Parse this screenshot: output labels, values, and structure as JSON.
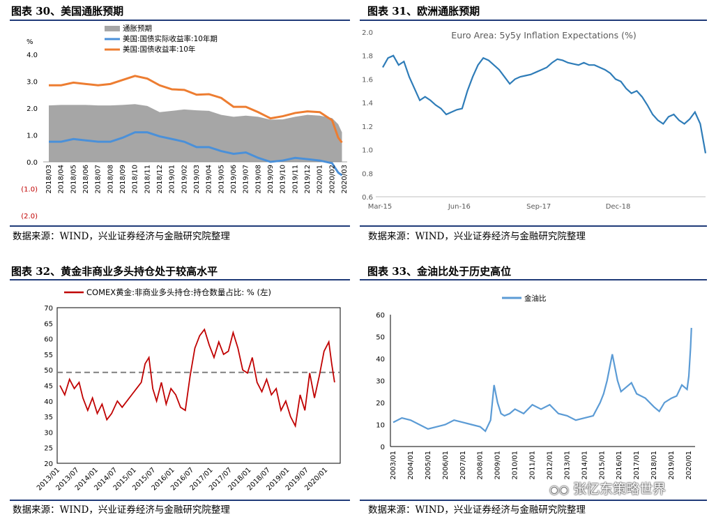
{
  "panels": {
    "p30": {
      "title": "图表 30、美国通胀预期",
      "source": "数据来源：WIND，兴业证券经济与金融研究院整理"
    },
    "p31": {
      "title": "图表 31、欧洲通胀预期",
      "source": "数据来源：WIND，兴业证券经济与金融研究院整理"
    },
    "p32": {
      "title": "图表 32、黄金非商业多头持仓处于较高水平",
      "source": "数据来源：WIND，兴业证券经济与金融研究院整理"
    },
    "p33": {
      "title": "图表 33、金油比处于历史高位",
      "source": "数据来源：WIND，兴业证券经济与金融研究院整理"
    }
  },
  "watermark": "张忆东策略世界",
  "chart_data": [
    {
      "id": "us",
      "type": "line",
      "title": "",
      "yunit": "%",
      "ylim": [
        -2.0,
        4.0
      ],
      "yticks": [
        "(2.0)",
        "(1.0)",
        "0.0",
        "1.0",
        "2.0",
        "3.0",
        "4.0"
      ],
      "yticks_values": [
        -2,
        -1,
        0,
        1,
        2,
        3,
        4
      ],
      "xticks": [
        "2018/03",
        "2018/04",
        "2018/05",
        "2018/06",
        "2018/07",
        "2018/08",
        "2018/09",
        "2018/10",
        "2018/11",
        "2018/12",
        "2019/01",
        "2019/02",
        "2019/03",
        "2019/04",
        "2019/05",
        "2019/06",
        "2019/07",
        "2019/08",
        "2019/09",
        "2019/10",
        "2019/11",
        "2019/12",
        "2020/01",
        "2020/02",
        "2020/03"
      ],
      "legend_position": "top-left",
      "series": [
        {
          "name": "通胀预期",
          "kind": "area",
          "color": "#a6a6a6",
          "x": [
            0,
            1,
            2,
            3,
            4,
            5,
            6,
            7,
            8,
            9,
            10,
            11,
            12,
            13,
            14,
            15,
            16,
            17,
            18,
            19,
            20,
            21,
            22,
            23,
            23.5,
            23.8
          ],
          "values": [
            2.1,
            2.12,
            2.12,
            2.12,
            2.1,
            2.1,
            2.12,
            2.15,
            2.08,
            1.85,
            1.9,
            1.95,
            1.92,
            1.9,
            1.75,
            1.68,
            1.72,
            1.68,
            1.57,
            1.58,
            1.68,
            1.75,
            1.72,
            1.63,
            1.4,
            1.1
          ]
        },
        {
          "name": "美国:国债实际收益率:10年期",
          "kind": "line",
          "color": "#4a90d9",
          "x": [
            0,
            1,
            2,
            3,
            4,
            5,
            6,
            7,
            8,
            9,
            10,
            11,
            12,
            13,
            14,
            15,
            16,
            17,
            18,
            19,
            20,
            21,
            22,
            23,
            23.5,
            23.8
          ],
          "values": [
            0.75,
            0.75,
            0.85,
            0.8,
            0.75,
            0.75,
            0.9,
            1.1,
            1.1,
            0.95,
            0.85,
            0.75,
            0.55,
            0.55,
            0.4,
            0.3,
            0.35,
            0.15,
            0.0,
            0.05,
            0.15,
            0.1,
            0.05,
            -0.05,
            -0.4,
            -0.5
          ]
        },
        {
          "name": "美国:国债收益率:10年",
          "kind": "line",
          "color": "#ed7d31",
          "x": [
            0,
            1,
            2,
            3,
            4,
            5,
            6,
            7,
            8,
            9,
            10,
            11,
            12,
            13,
            14,
            15,
            16,
            17,
            18,
            19,
            20,
            21,
            22,
            23,
            23.5,
            23.8
          ],
          "values": [
            2.85,
            2.85,
            2.95,
            2.9,
            2.85,
            2.9,
            3.05,
            3.2,
            3.1,
            2.85,
            2.7,
            2.68,
            2.5,
            2.52,
            2.38,
            2.05,
            2.05,
            1.85,
            1.62,
            1.7,
            1.82,
            1.88,
            1.85,
            1.55,
            0.9,
            0.72
          ]
        }
      ]
    },
    {
      "id": "eu",
      "type": "line",
      "title": "Euro Area: 5y5y Inflation Expectations (%)",
      "ylim": [
        0.6,
        2.0
      ],
      "yticks": [
        "0.6",
        "0.8",
        "1.0",
        "1.2",
        "1.4",
        "1.6",
        "1.8",
        "2.0"
      ],
      "yticks_values": [
        0.6,
        0.8,
        1.0,
        1.2,
        1.4,
        1.6,
        1.8,
        2.0
      ],
      "xticks": [
        "Mar-15",
        "Jun-16",
        "Sep-17",
        "Dec-18"
      ],
      "xticks_values": [
        0,
        15,
        30,
        45
      ],
      "xlim": [
        0,
        61
      ],
      "series": [
        {
          "name": "Euro Area 5y5y",
          "color": "#2e7cb8",
          "x": [
            0,
            1,
            2,
            3,
            4,
            5,
            6,
            7,
            8,
            9,
            10,
            11,
            12,
            13,
            14,
            15,
            16,
            17,
            18,
            19,
            20,
            21,
            22,
            23,
            24,
            25,
            26,
            27,
            28,
            29,
            30,
            31,
            32,
            33,
            34,
            35,
            36,
            37,
            38,
            39,
            40,
            41,
            42,
            43,
            44,
            45,
            46,
            47,
            48,
            49,
            50,
            51,
            52,
            53,
            54,
            55,
            56,
            57,
            58,
            59,
            60,
            61
          ],
          "values": [
            1.7,
            1.78,
            1.8,
            1.72,
            1.75,
            1.62,
            1.52,
            1.42,
            1.45,
            1.42,
            1.38,
            1.35,
            1.3,
            1.32,
            1.34,
            1.35,
            1.5,
            1.62,
            1.72,
            1.78,
            1.76,
            1.72,
            1.68,
            1.62,
            1.56,
            1.6,
            1.62,
            1.63,
            1.64,
            1.66,
            1.68,
            1.7,
            1.74,
            1.77,
            1.76,
            1.74,
            1.73,
            1.72,
            1.74,
            1.72,
            1.72,
            1.7,
            1.68,
            1.65,
            1.6,
            1.58,
            1.52,
            1.48,
            1.5,
            1.45,
            1.38,
            1.3,
            1.25,
            1.22,
            1.28,
            1.3,
            1.25,
            1.22,
            1.26,
            1.32,
            1.22,
            0.97
          ]
        }
      ]
    },
    {
      "id": "gold",
      "type": "line",
      "title": "",
      "ylim": [
        20,
        70
      ],
      "yticks": [
        "20",
        "25",
        "30",
        "35",
        "40",
        "45",
        "50",
        "55",
        "60",
        "65",
        "70"
      ],
      "yticks_values": [
        20,
        25,
        30,
        35,
        40,
        45,
        50,
        55,
        60,
        65,
        70
      ],
      "xticks": [
        "2013/01",
        "2013/07",
        "2014/01",
        "2014/07",
        "2015/01",
        "2015/07",
        "2016/01",
        "2016/07",
        "2017/01",
        "2017/07",
        "2018/01",
        "2018/07",
        "2019/01",
        "2019/07",
        "2020/01"
      ],
      "xlim": [
        0,
        14.5
      ],
      "mean_line": 49.2,
      "series": [
        {
          "name": "COMEX黄金:非商业多头持仓:持仓数量占比: % (左)",
          "color": "#c00000",
          "x": [
            0,
            0.25,
            0.5,
            0.75,
            1.0,
            1.2,
            1.45,
            1.7,
            1.95,
            2.2,
            2.45,
            2.7,
            3.0,
            3.25,
            3.5,
            3.75,
            4.0,
            4.25,
            4.45,
            4.65,
            4.85,
            5.05,
            5.3,
            5.55,
            5.8,
            6.05,
            6.3,
            6.55,
            6.8,
            7.05,
            7.3,
            7.55,
            7.8,
            8.05,
            8.3,
            8.55,
            8.8,
            9.05,
            9.3,
            9.55,
            9.8,
            10.05,
            10.3,
            10.55,
            10.8,
            11.05,
            11.3,
            11.55,
            11.8,
            12.05,
            12.3,
            12.55,
            12.8,
            13.05,
            13.3,
            13.55,
            13.8,
            14.05,
            14.2,
            14.35
          ],
          "values": [
            45,
            42,
            47,
            44,
            46,
            41,
            37,
            41,
            36,
            39,
            34,
            36,
            40,
            38,
            40,
            42,
            44,
            46,
            52,
            54,
            44,
            40,
            46,
            39,
            44,
            42,
            38,
            37,
            48,
            57,
            61,
            63,
            58,
            54,
            59,
            55,
            56,
            62,
            57,
            50,
            49,
            54,
            46,
            43,
            47,
            42,
            44,
            37,
            40,
            35,
            32,
            42,
            37,
            49,
            41,
            48,
            56,
            59,
            52,
            46
          ]
        }
      ]
    },
    {
      "id": "goldoil",
      "type": "line",
      "title": "",
      "ylim": [
        0,
        60
      ],
      "yticks": [
        "0",
        "10",
        "20",
        "30",
        "40",
        "50",
        "60"
      ],
      "yticks_values": [
        0,
        10,
        20,
        30,
        40,
        50,
        60
      ],
      "xticks": [
        "2003/01",
        "2004/01",
        "2005/01",
        "2006/01",
        "2007/01",
        "2008/01",
        "2009/01",
        "2010/01",
        "2011/01",
        "2012/01",
        "2013/01",
        "2014/01",
        "2015/01",
        "2016/01",
        "2017/01",
        "2018/01",
        "2019/01",
        "2020/01"
      ],
      "xlim": [
        0,
        17.2
      ],
      "legend_position": "top-left",
      "series": [
        {
          "name": "金油比",
          "color": "#5b9bd5",
          "x": [
            0,
            0.5,
            1,
            1.5,
            2,
            2.5,
            3,
            3.5,
            4,
            4.5,
            5,
            5.3,
            5.6,
            5.8,
            6,
            6.2,
            6.4,
            6.7,
            7,
            7.5,
            8,
            8.5,
            9,
            9.5,
            10,
            10.5,
            11,
            11.5,
            11.9,
            12.1,
            12.3,
            12.6,
            12.9,
            13.1,
            13.4,
            13.7,
            14,
            14.5,
            15,
            15.3,
            15.6,
            16,
            16.3,
            16.6,
            16.9,
            17.0,
            17.1,
            17.15
          ],
          "values": [
            11,
            13,
            12,
            10,
            8,
            9,
            10,
            12,
            11,
            10,
            9,
            7,
            12,
            28,
            20,
            15,
            14,
            15,
            17,
            15,
            19,
            17,
            19,
            15,
            14,
            12,
            13,
            14,
            20,
            24,
            30,
            42,
            30,
            25,
            27,
            29,
            24,
            22,
            18,
            16,
            20,
            22,
            23,
            28,
            26,
            32,
            45,
            54
          ]
        }
      ]
    }
  ]
}
